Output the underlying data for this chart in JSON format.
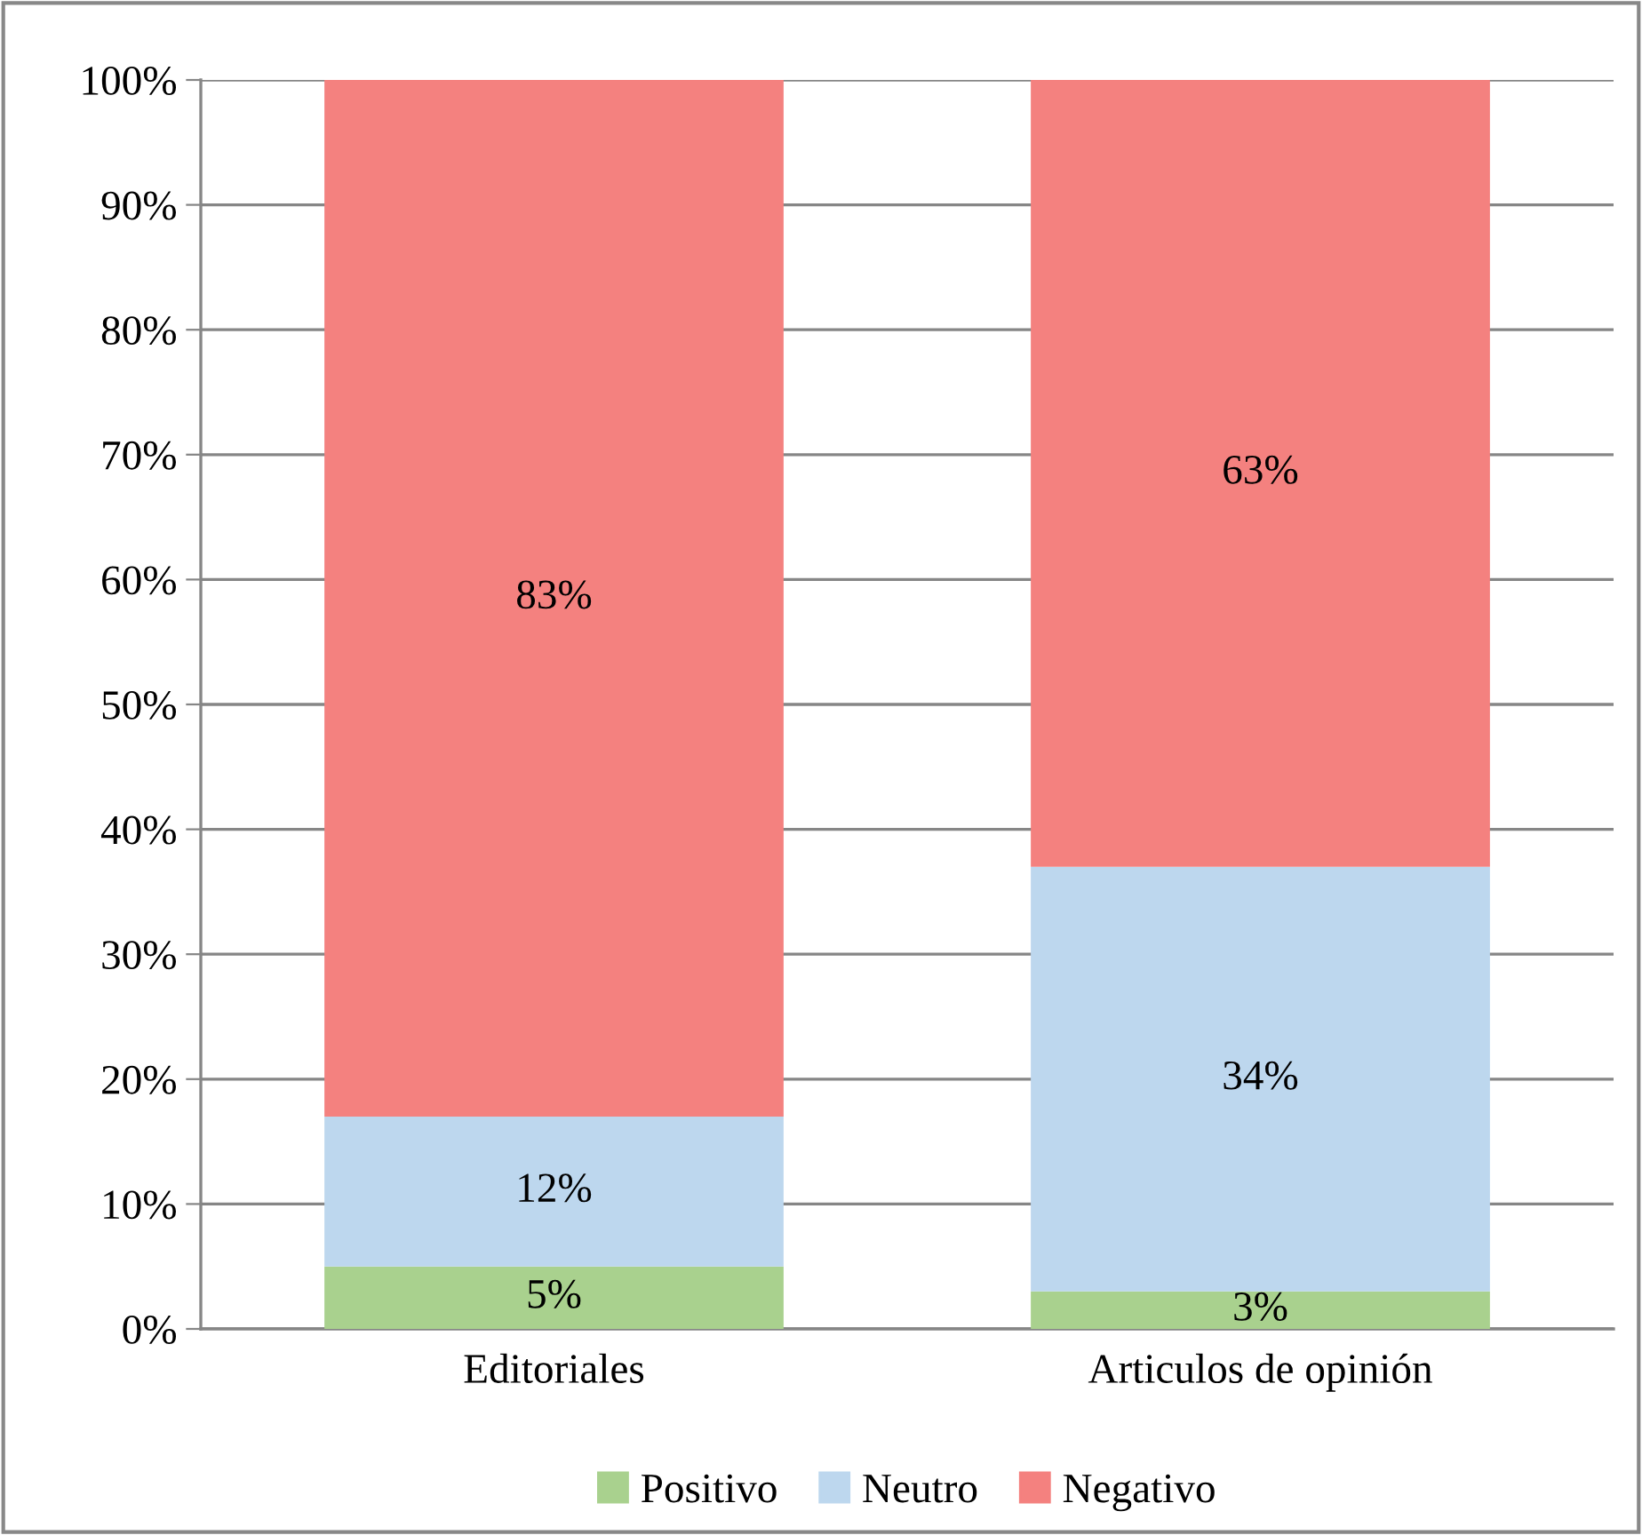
{
  "chart_data": {
    "type": "bar",
    "stacked": true,
    "categories": [
      "Editoriales",
      "Articulos de opinión"
    ],
    "series": [
      {
        "name": "Positivo",
        "color": "#a9d18e",
        "values": [
          5,
          3
        ],
        "value_labels": [
          "5%",
          "3%"
        ]
      },
      {
        "name": "Neutro",
        "color": "#bdd7ee",
        "values": [
          12,
          34
        ],
        "value_labels": [
          "12%",
          "34%"
        ]
      },
      {
        "name": "Negativo",
        "color": "#f4817f",
        "values": [
          83,
          63
        ],
        "value_labels": [
          "83%",
          "63%"
        ]
      }
    ],
    "ylim": [
      0,
      100
    ],
    "yticks": [
      {
        "value": 0,
        "label": "0%"
      },
      {
        "value": 10,
        "label": "10%"
      },
      {
        "value": 20,
        "label": "20%"
      },
      {
        "value": 30,
        "label": "30%"
      },
      {
        "value": 40,
        "label": "40%"
      },
      {
        "value": 50,
        "label": "50%"
      },
      {
        "value": 60,
        "label": "60%"
      },
      {
        "value": 70,
        "label": "70%"
      },
      {
        "value": 80,
        "label": "80%"
      },
      {
        "value": 90,
        "label": "90%"
      },
      {
        "value": 100,
        "label": "100%"
      }
    ],
    "grid": "y",
    "legend": "bottom"
  }
}
